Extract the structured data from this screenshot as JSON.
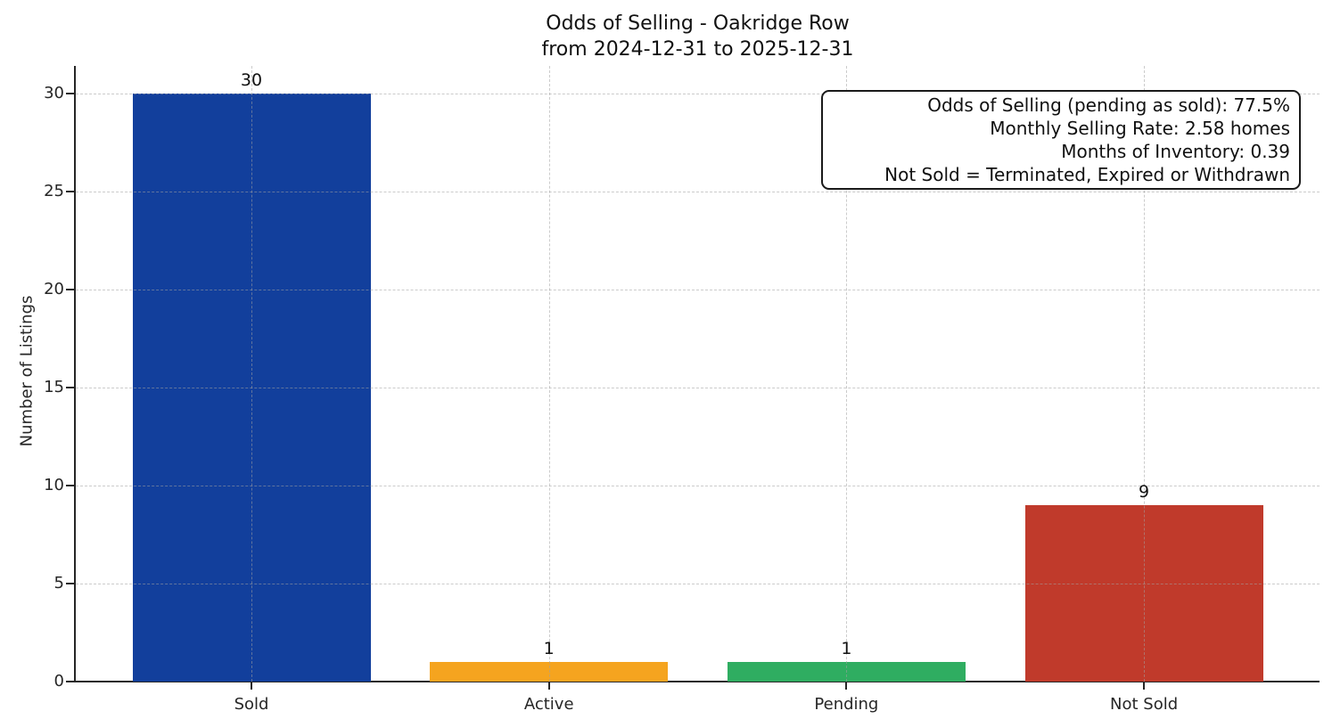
{
  "chart_data": {
    "type": "bar",
    "title": "Odds of Selling - Oakridge Row",
    "subtitle": "from 2024-12-31 to 2025-12-31",
    "categories": [
      "Sold",
      "Active",
      "Pending",
      "Not Sold"
    ],
    "values": [
      30,
      1,
      1,
      9
    ],
    "bar_value_labels": [
      "30",
      "1",
      "1",
      "9"
    ],
    "bar_colors": [
      "#123f9c",
      "#f5a41f",
      "#2fad61",
      "#c03a2b"
    ],
    "ylabel": "Number of Listings",
    "xlabel": "",
    "yticks": [
      0,
      5,
      10,
      15,
      20,
      25,
      30
    ],
    "ylim": [
      0,
      31.4
    ],
    "grid": "dashed-both-axes",
    "legend": "none",
    "annotation": {
      "position": "top-right",
      "lines": [
        "Odds of Selling (pending as sold): 77.5%",
        "Monthly Selling Rate: 2.58 homes",
        "Months of Inventory: 0.39",
        "Not Sold = Terminated, Expired or Withdrawn"
      ]
    }
  }
}
